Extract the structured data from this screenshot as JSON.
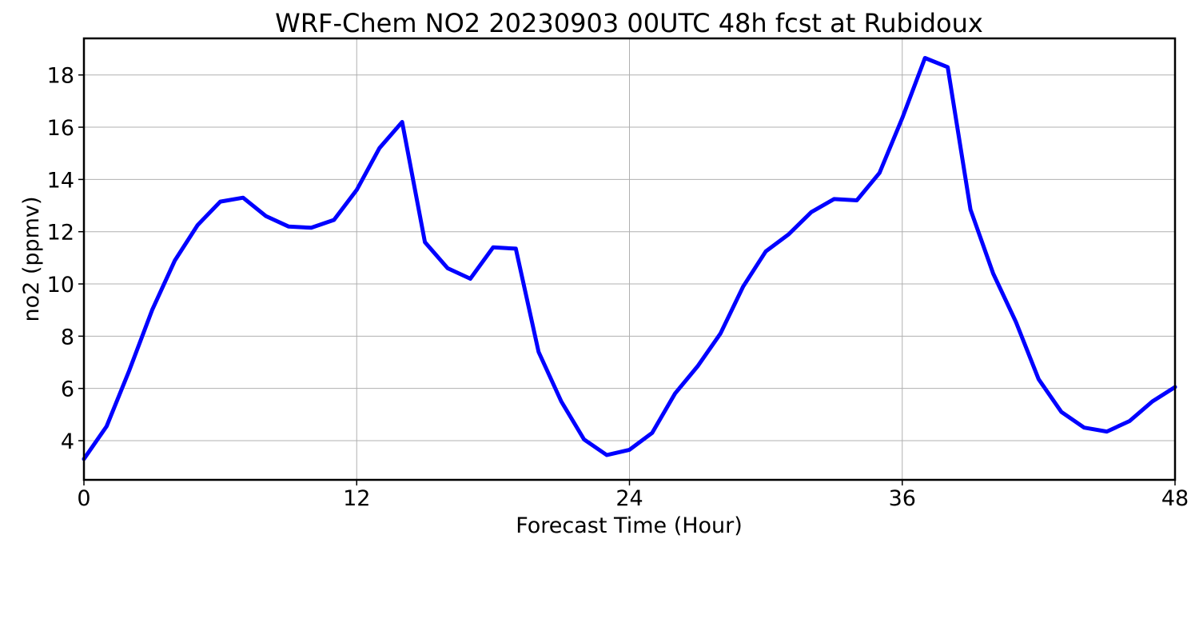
{
  "chart_data": {
    "type": "line",
    "title": "WRF-Chem NO2  20230903 00UTC 48h fcst at Rubidoux",
    "xlabel": "Forecast Time (Hour)",
    "ylabel": "no2  (ppmv)",
    "xlim": [
      0,
      48
    ],
    "ylim": [
      2.5,
      19.4
    ],
    "xticks": [
      0,
      12,
      24,
      36,
      48
    ],
    "yticks": [
      4,
      6,
      8,
      10,
      12,
      14,
      16,
      18
    ],
    "grid": true,
    "line_color": "#0000ff",
    "series": [
      {
        "x": [
          0,
          1,
          2,
          3,
          4,
          5,
          6,
          7,
          8,
          9,
          10,
          11,
          12,
          13,
          14,
          15,
          16,
          17,
          18,
          19,
          20,
          21,
          22,
          23,
          24,
          25,
          26,
          27,
          28,
          29,
          30,
          31,
          32,
          33,
          34,
          35,
          36,
          37,
          38,
          39,
          40,
          41,
          42,
          43,
          44,
          45,
          46,
          47,
          48
        ],
        "values": [
          3.3,
          4.55,
          6.7,
          9.0,
          10.9,
          12.25,
          13.15,
          13.3,
          12.6,
          12.2,
          12.15,
          12.45,
          13.6,
          15.2,
          16.2,
          11.6,
          10.6,
          10.2,
          11.4,
          11.35,
          7.4,
          5.5,
          4.05,
          3.45,
          3.65,
          4.3,
          5.8,
          6.85,
          8.1,
          9.9,
          11.25,
          11.9,
          12.75,
          13.25,
          13.2,
          14.25,
          16.35,
          18.65,
          18.3,
          12.85,
          10.4,
          8.55,
          6.35,
          5.1,
          4.5,
          4.35,
          4.75,
          5.5,
          6.05
        ]
      }
    ]
  }
}
